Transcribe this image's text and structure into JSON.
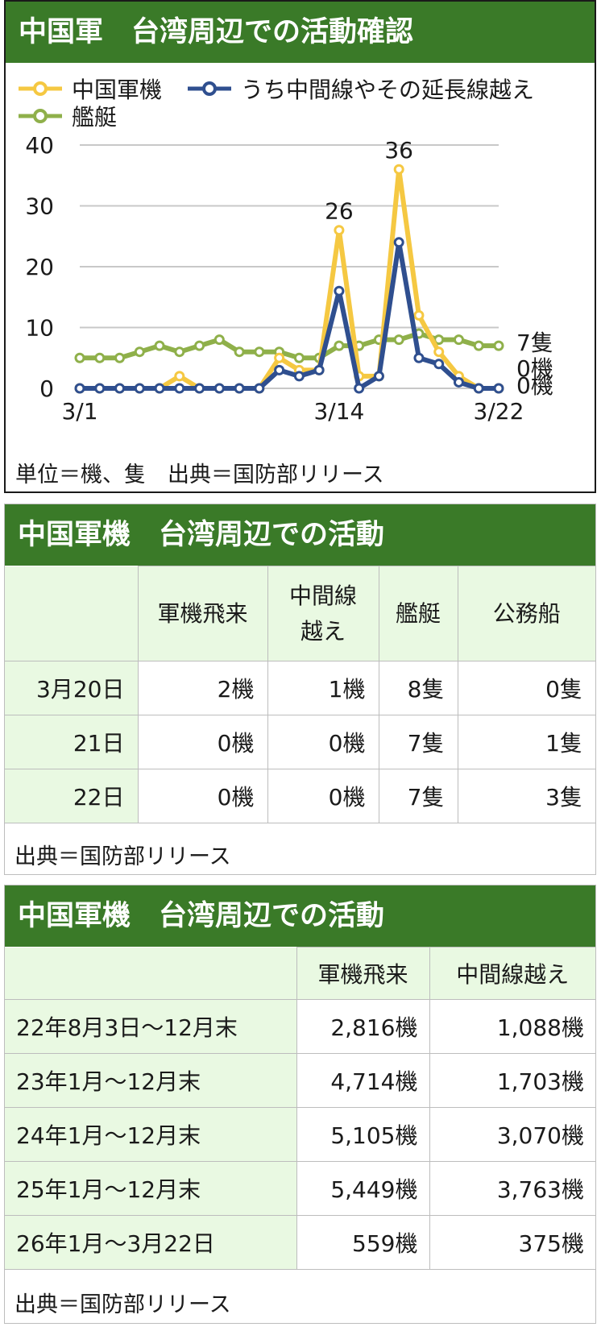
{
  "chart_panel": {
    "title": "中国軍　台湾周辺での活動確認",
    "legend": [
      "中国軍機",
      "うち中間線やその延長線越え",
      "艦艇"
    ],
    "source_note": "単位＝機、隻　出典＝国防部リリース"
  },
  "chart_data": {
    "type": "line",
    "x": [
      "3/1",
      "3/2",
      "3/3",
      "3/4",
      "3/5",
      "3/6",
      "3/7",
      "3/8",
      "3/9",
      "3/10",
      "3/11",
      "3/12",
      "3/13",
      "3/14",
      "3/15",
      "3/16",
      "3/17",
      "3/18",
      "3/19",
      "3/20",
      "3/21",
      "3/22"
    ],
    "x_tick_labels": [
      "3/1",
      "3/14",
      "3/22"
    ],
    "series": [
      {
        "name": "中国軍機",
        "color": "#f5c842",
        "values": [
          0,
          0,
          0,
          0,
          0,
          2,
          0,
          0,
          0,
          0,
          5,
          3,
          3,
          26,
          2,
          2,
          36,
          12,
          6,
          2,
          0,
          0
        ]
      },
      {
        "name": "うち中間線やその延長線越え",
        "color": "#2f4f8f",
        "values": [
          0,
          0,
          0,
          0,
          0,
          0,
          0,
          0,
          0,
          0,
          3,
          2,
          3,
          16,
          0,
          2,
          24,
          5,
          4,
          1,
          0,
          0
        ]
      },
      {
        "name": "艦艇",
        "color": "#8fb04a",
        "values": [
          5,
          5,
          5,
          6,
          7,
          6,
          7,
          8,
          6,
          6,
          6,
          5,
          5,
          7,
          7,
          8,
          8,
          9,
          8,
          8,
          7,
          7
        ]
      }
    ],
    "ylim": [
      0,
      40
    ],
    "y_ticks": [
      0,
      10,
      20,
      30,
      40
    ],
    "data_labels": [
      "26",
      "36"
    ],
    "end_labels": [
      "7隻",
      "0機",
      "0機"
    ],
    "grid": true,
    "legend_position": "top-left"
  },
  "daily_table": {
    "title": "中国軍機　台湾周辺での活動",
    "headers": [
      "",
      "軍機飛来",
      "中間線越え",
      "艦艇",
      "公務船"
    ],
    "header_wrapped": [
      "",
      "軍機飛来",
      "中間線\n越え",
      "艦艇",
      "公務船"
    ],
    "rows": [
      [
        "3月20日",
        "2機",
        "1機",
        "8隻",
        "0隻"
      ],
      [
        "21日",
        "0機",
        "0機",
        "7隻",
        "1隻"
      ],
      [
        "22日",
        "0機",
        "0機",
        "7隻",
        "3隻"
      ]
    ],
    "source_note": "出典＝国防部リリース"
  },
  "annual_table": {
    "title": "中国軍機　台湾周辺での活動",
    "headers": [
      "",
      "軍機飛来",
      "中間線越え"
    ],
    "rows": [
      [
        "22年8月3日～12月末",
        "2,816機",
        "1,088機"
      ],
      [
        "23年1月～12月末",
        "4,714機",
        "1,703機"
      ],
      [
        "24年1月～12月末",
        "5,105機",
        "3,070機"
      ],
      [
        "25年1月～12月末",
        "5,449機",
        "3,763機"
      ],
      [
        "26年1月～3月22日",
        "559機",
        "375機"
      ]
    ],
    "source_note": "出典＝国防部リリース"
  }
}
